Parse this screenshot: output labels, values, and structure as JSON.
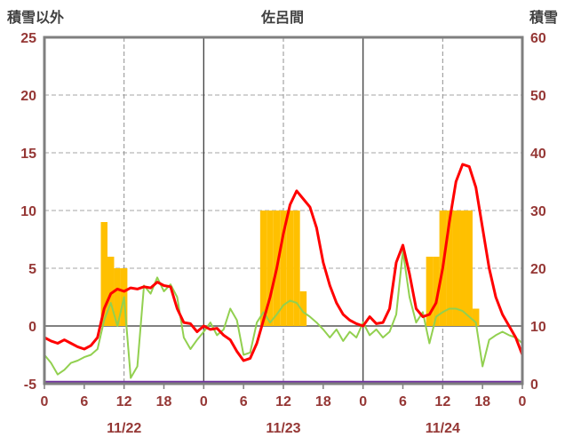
{
  "chart_data": {
    "type": "composite",
    "title": "佐呂間",
    "axis_text_color": "#953735",
    "header_text_color": "#404040",
    "left_axis": {
      "label": "積雪以外",
      "min": -5,
      "max": 25,
      "ticks": [
        25,
        20,
        15,
        10,
        5,
        0,
        -5
      ]
    },
    "right_axis": {
      "label": "積雪",
      "min": 0,
      "max": 60,
      "ticks": [
        60,
        50,
        40,
        30,
        20,
        10,
        0
      ]
    },
    "x_axis": {
      "hours_span": 72,
      "tick_interval": 6,
      "tick_labels": [
        "0",
        "6",
        "12",
        "18",
        "0",
        "6",
        "12",
        "18",
        "0",
        "6",
        "12",
        "18",
        "0"
      ],
      "day_labels": [
        {
          "label": "11/22",
          "hour": 12
        },
        {
          "label": "11/23",
          "hour": 36
        },
        {
          "label": "11/24",
          "hour": 60
        }
      ]
    },
    "grid": {
      "h_dashed": [
        5,
        10,
        15,
        20
      ],
      "zero_line": 0,
      "v_solid_hours": [
        24,
        48
      ],
      "v_dashed_hours": [
        12,
        36,
        60
      ]
    },
    "series": {
      "bars": {
        "type": "bar",
        "axis": "left",
        "color": "#FFC000",
        "values": [
          0,
          0,
          0,
          0,
          0,
          0,
          0,
          0,
          0,
          9,
          6,
          5,
          5,
          0,
          0,
          0,
          0,
          0,
          0,
          0,
          0,
          0,
          0,
          0,
          0,
          0,
          0,
          0,
          0,
          0,
          0,
          0,
          0,
          10,
          10,
          10,
          10,
          10,
          10,
          3,
          0,
          0,
          0,
          0,
          0,
          0,
          0,
          0,
          0,
          0,
          0,
          0,
          0,
          0,
          0,
          0,
          0,
          0,
          6,
          6,
          10,
          10,
          10,
          10,
          10,
          1.5,
          0,
          0,
          0,
          0,
          0,
          0,
          0
        ]
      },
      "red_line": {
        "type": "line",
        "axis": "left",
        "color": "#FF0000",
        "width": 3,
        "values": [
          -1,
          -1.3,
          -1.5,
          -1.2,
          -1.5,
          -1.8,
          -2,
          -1.7,
          -1,
          1.5,
          2.8,
          3.2,
          3,
          3.3,
          3.2,
          3.4,
          3.3,
          3.8,
          3.5,
          3.4,
          1.5,
          0.3,
          0.2,
          -0.5,
          0,
          -0.3,
          -0.2,
          -0.8,
          -1.2,
          -2.2,
          -3,
          -2.8,
          -1.5,
          0.5,
          2.5,
          5,
          8,
          10.5,
          11.7,
          11,
          10.3,
          8.5,
          5.5,
          3.5,
          2,
          1,
          0.5,
          0.2,
          0,
          0.8,
          0.2,
          0.3,
          1.5,
          5.5,
          7,
          4.5,
          1.5,
          0.8,
          1,
          2,
          5,
          9,
          12.5,
          14,
          13.8,
          12,
          8.5,
          5,
          2.5,
          1,
          0,
          -1,
          -2.5
        ]
      },
      "green_line": {
        "type": "line",
        "axis": "left",
        "color": "#92D050",
        "width": 2,
        "values": [
          -2.5,
          -3.2,
          -4.2,
          -3.8,
          -3.2,
          -3,
          -2.7,
          -2.5,
          -2,
          0.5,
          2,
          0,
          2.5,
          -4.5,
          -3.5,
          3.5,
          2.8,
          4.2,
          3,
          3.6,
          2.5,
          -1,
          -2,
          -1.2,
          -0.5,
          0.3,
          -0.8,
          -0.3,
          1.5,
          0.5,
          -2.5,
          -2.3,
          0.3,
          1.2,
          0.3,
          1,
          1.8,
          2.2,
          2,
          1.2,
          0.8,
          0.3,
          -0.3,
          -1,
          -0.3,
          -1.3,
          -0.5,
          -1,
          0.3,
          -0.8,
          -0.3,
          -1,
          -0.5,
          1,
          6.5,
          2.5,
          0.3,
          1.2,
          -1.5,
          0.8,
          1.2,
          1.5,
          1.5,
          1.3,
          0.8,
          0.3,
          -3.5,
          -1.2,
          -0.8,
          -0.5,
          -0.8,
          -1,
          -1.5
        ]
      },
      "purple_line": {
        "type": "line",
        "axis": "right",
        "color": "#7030A0",
        "width": 2.5,
        "values": [
          0,
          0,
          0,
          0,
          0,
          0,
          0,
          0,
          0,
          0,
          0,
          0,
          0,
          0,
          0,
          0,
          0,
          0,
          0,
          0,
          0,
          0,
          0,
          0,
          0,
          0,
          0,
          0,
          0,
          0,
          0,
          0,
          0,
          0,
          0,
          0,
          0,
          0,
          0,
          0,
          0,
          0,
          0,
          0,
          0,
          0,
          0,
          0,
          0,
          0,
          0,
          0,
          0,
          0,
          0,
          0,
          0,
          0,
          0,
          0,
          0,
          0,
          0,
          0,
          0,
          0,
          0,
          0,
          0,
          0,
          0,
          0,
          0
        ]
      }
    }
  }
}
